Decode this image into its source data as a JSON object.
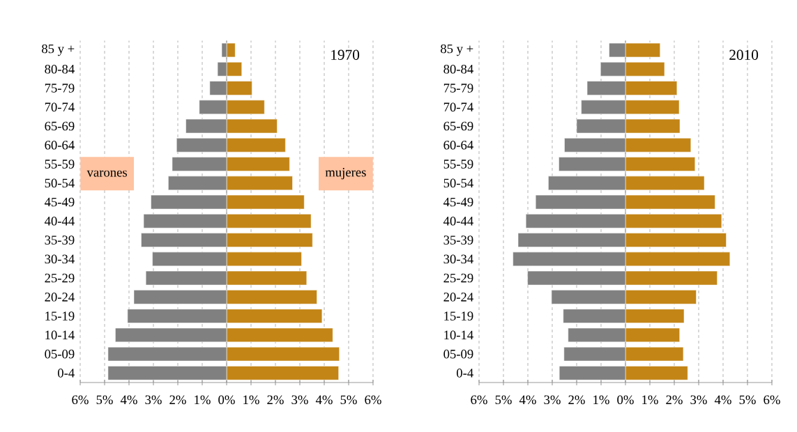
{
  "chart_data": [
    {
      "type": "bar",
      "orientation": "horizontal",
      "stacked": true,
      "title": "1970",
      "categories": [
        "85 y +",
        "80-84",
        "75-79",
        "70-74",
        "65-69",
        "60-64",
        "55-59",
        "50-54",
        "45-49",
        "40-44",
        "35-39",
        "30-34",
        "25-29",
        "20-24",
        "15-19",
        "10-14",
        "05-09",
        "0-4"
      ],
      "series": [
        {
          "name": "varones",
          "color": "#808080",
          "values": [
            -0.2,
            -0.37,
            -0.69,
            -1.12,
            -1.67,
            -2.05,
            -2.23,
            -2.39,
            -3.1,
            -3.4,
            -3.5,
            -3.04,
            -3.31,
            -3.8,
            -4.06,
            -4.56,
            -4.86,
            -4.86
          ]
        },
        {
          "name": "mujeres",
          "color": "#c38516",
          "values": [
            0.35,
            0.62,
            1.04,
            1.55,
            2.07,
            2.41,
            2.58,
            2.7,
            3.18,
            3.46,
            3.52,
            3.07,
            3.28,
            3.7,
            3.91,
            4.35,
            4.62,
            4.59
          ]
        }
      ],
      "xlim": [
        -6,
        6
      ],
      "xticks": [
        {
          "value": -6,
          "label": "6%"
        },
        {
          "value": -5,
          "label": "5%"
        },
        {
          "value": -4,
          "label": "4%"
        },
        {
          "value": -3,
          "label": "3%"
        },
        {
          "value": -2,
          "label": "2%"
        },
        {
          "value": -1,
          "label": "1%"
        },
        {
          "value": 0,
          "label": "0%"
        },
        {
          "value": 1,
          "label": "1%"
        },
        {
          "value": 2,
          "label": "2%"
        },
        {
          "value": 3,
          "label": "3%"
        },
        {
          "value": 4,
          "label": "4%"
        },
        {
          "value": 5,
          "label": "5%"
        },
        {
          "value": 6,
          "label": "6%"
        }
      ],
      "grid": "x"
    },
    {
      "type": "bar",
      "orientation": "horizontal",
      "stacked": true,
      "title": "2010",
      "categories": [
        "85 y +",
        "80-84",
        "75-79",
        "70-74",
        "65-69",
        "60-64",
        "55-59",
        "50-54",
        "45-49",
        "40-44",
        "35-39",
        "30-34",
        "25-29",
        "20-24",
        "15-19",
        "10-14",
        "05-09",
        "0-4"
      ],
      "series": [
        {
          "color": "#808080",
          "values": [
            -0.67,
            -1.02,
            -1.57,
            -1.81,
            -2.0,
            -2.5,
            -2.73,
            -3.16,
            -3.68,
            -4.08,
            -4.4,
            -4.61,
            -4.01,
            -3.03,
            -2.55,
            -2.35,
            -2.52,
            -2.71
          ]
        },
        {
          "color": "#c38516",
          "values": [
            1.42,
            1.6,
            2.11,
            2.2,
            2.23,
            2.68,
            2.85,
            3.23,
            3.67,
            3.94,
            4.13,
            4.28,
            3.76,
            2.9,
            2.4,
            2.22,
            2.37,
            2.55
          ]
        }
      ],
      "xlim": [
        -6,
        6
      ],
      "xticks": [
        {
          "value": -6,
          "label": "6%"
        },
        {
          "value": -5,
          "label": "5%"
        },
        {
          "value": -4,
          "label": "4%"
        },
        {
          "value": -3,
          "label": "3%"
        },
        {
          "value": -2,
          "label": "2%"
        },
        {
          "value": -1,
          "label": "1%"
        },
        {
          "value": 0,
          "label": "0%"
        },
        {
          "value": 1,
          "label": "1%"
        },
        {
          "value": 2,
          "label": "2%"
        },
        {
          "value": 3,
          "label": "3%"
        },
        {
          "value": 4,
          "label": "4%"
        },
        {
          "value": 5,
          "label": "5%"
        },
        {
          "value": 6,
          "label": "6%"
        }
      ],
      "grid": "x"
    }
  ]
}
